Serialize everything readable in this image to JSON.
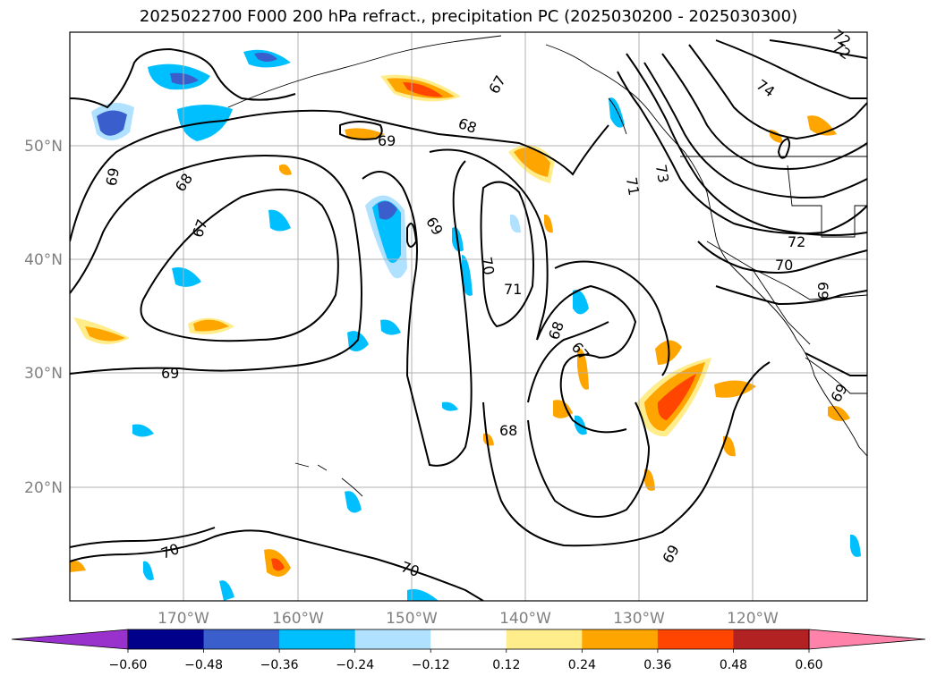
{
  "title": "2025022700 F000 200 hPa refract., precipitation PC (2025030200 - 2025030300)",
  "map": {
    "lon_range": [
      -180,
      -110
    ],
    "lat_range": [
      10,
      60
    ],
    "x_ticks": [
      "170°W",
      "160°W",
      "150°W",
      "140°W",
      "130°W",
      "120°W"
    ],
    "y_ticks": [
      "50°N",
      "40°N",
      "30°N",
      "20°N"
    ],
    "contour_labels": [
      "69",
      "68",
      "67",
      "69",
      "68",
      "69",
      "70",
      "71",
      "68",
      "67",
      "68",
      "73",
      "71",
      "74",
      "72",
      "72",
      "70",
      "69",
      "67",
      "69",
      "70",
      "70",
      "69",
      "69",
      "72"
    ]
  },
  "colorbar": {
    "tick_labels": [
      "−0.60",
      "−0.48",
      "−0.36",
      "−0.24",
      "−0.12",
      "0.12",
      "0.24",
      "0.36",
      "0.48",
      "0.60"
    ],
    "colors": [
      "#9932cc",
      "#00008b",
      "#3a5fcd",
      "#00bfff",
      "#b0e2ff",
      "#ffffff",
      "#ffec8b",
      "#ffa500",
      "#ff4500",
      "#b22222",
      "#ff82ab"
    ]
  }
}
